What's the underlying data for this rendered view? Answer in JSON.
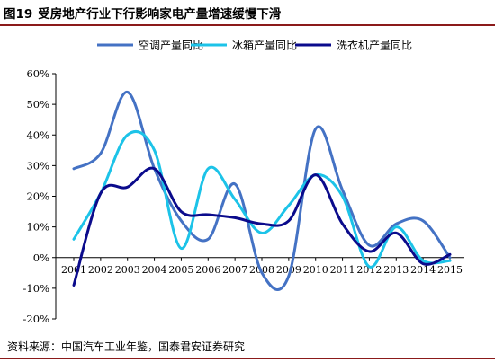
{
  "figure": {
    "number": "图19",
    "title": "受房地产行业下行影响家电产量增速缓慢下滑",
    "source": "资料来源：中国汽车工业年鉴，国泰君安证券研究"
  },
  "colors": {
    "rule": "#8b1a1a",
    "axis": "#000000"
  },
  "chart_data": {
    "type": "line",
    "title": "",
    "xlabel": "",
    "ylabel": "",
    "x": [
      "2001",
      "2002",
      "2003",
      "2004",
      "2005",
      "2006",
      "2007",
      "2008",
      "2009",
      "2010",
      "2011",
      "2012",
      "2013",
      "2014",
      "2015"
    ],
    "ylim": [
      -0.2,
      0.6
    ],
    "yticks": [
      -0.2,
      -0.1,
      0,
      0.1,
      0.2,
      0.3,
      0.4,
      0.5,
      0.6
    ],
    "ytick_labels": [
      "-20%",
      "-10%",
      "0%",
      "10%",
      "20%",
      "30%",
      "40%",
      "50%",
      "60%"
    ],
    "grid": false,
    "smooth": true,
    "legend_position": "top",
    "series": [
      {
        "name": "空调产量同比",
        "color": "#4472C4",
        "values": [
          0.29,
          0.34,
          0.54,
          0.29,
          0.12,
          0.06,
          0.24,
          -0.05,
          -0.06,
          0.42,
          0.22,
          0.04,
          0.11,
          0.12,
          0.0
        ]
      },
      {
        "name": "冰箱产量同比",
        "color": "#1CC3E8",
        "values": [
          0.06,
          0.21,
          0.4,
          0.35,
          0.03,
          0.29,
          0.19,
          0.08,
          0.17,
          0.27,
          0.2,
          -0.03,
          0.1,
          -0.01,
          -0.01
        ]
      },
      {
        "name": "洗衣机产量同比",
        "color": "#0B0B8C",
        "values": [
          -0.09,
          0.21,
          0.23,
          0.29,
          0.15,
          0.14,
          0.13,
          0.11,
          0.12,
          0.27,
          0.11,
          0.02,
          0.08,
          -0.02,
          0.01
        ]
      }
    ]
  }
}
